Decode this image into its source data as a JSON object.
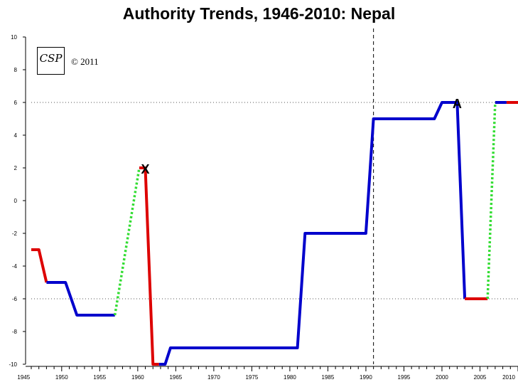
{
  "chart_data": {
    "type": "line",
    "title": "Authority Trends, 1946-2010: Nepal",
    "xlabel": "",
    "ylabel": "",
    "xlim": [
      1946,
      2010
    ],
    "ylim": [
      -10,
      10
    ],
    "x_ticks": [
      "1945",
      "1950",
      "1955",
      "1960",
      "1965",
      "1970",
      "1975",
      "1980",
      "1985",
      "1990",
      "1995",
      "2000",
      "2005",
      "2010"
    ],
    "y_ticks": [
      "10",
      "8",
      "6",
      "4",
      "2",
      "0",
      "-2",
      "-4",
      "-6",
      "-8",
      "-10"
    ],
    "reference_lines": {
      "horizontal": [
        6,
        -6
      ],
      "vertical": [
        1991
      ]
    },
    "segments": [
      {
        "kind": "red",
        "points": [
          [
            1946,
            -3
          ],
          [
            1947,
            -3
          ],
          [
            1948,
            -5
          ]
        ]
      },
      {
        "kind": "blue",
        "points": [
          [
            1948,
            -5
          ],
          [
            1950.5,
            -5
          ],
          [
            1952,
            -7
          ],
          [
            1957,
            -7
          ]
        ]
      },
      {
        "kind": "green",
        "points": [
          [
            1957,
            -7
          ],
          [
            1960.2,
            2
          ]
        ]
      },
      {
        "kind": "red",
        "points": [
          [
            1960.2,
            2
          ],
          [
            1961,
            2
          ],
          [
            1962,
            -10
          ],
          [
            1962.8,
            -10
          ]
        ]
      },
      {
        "kind": "blue",
        "points": [
          [
            1962.8,
            -10
          ],
          [
            1963.6,
            -10
          ],
          [
            1964.3,
            -9
          ],
          [
            1981,
            -9
          ],
          [
            1982,
            -2
          ],
          [
            1990,
            -2
          ],
          [
            1991,
            5
          ],
          [
            1999,
            5
          ],
          [
            2000,
            6
          ],
          [
            2002,
            6
          ],
          [
            2003,
            -6
          ]
        ]
      },
      {
        "kind": "red",
        "points": [
          [
            2003,
            -6
          ],
          [
            2006,
            -6
          ]
        ]
      },
      {
        "kind": "green",
        "points": [
          [
            2006,
            -6
          ],
          [
            2007,
            6
          ]
        ]
      },
      {
        "kind": "blue",
        "points": [
          [
            2007,
            6
          ],
          [
            2008.5,
            6
          ]
        ]
      },
      {
        "kind": "red",
        "points": [
          [
            2008.5,
            6
          ],
          [
            2010,
            6
          ]
        ]
      }
    ],
    "annotations": [
      {
        "text": "X",
        "x": 1961,
        "y": 2
      },
      {
        "text": "A",
        "x": 2002,
        "y": 6
      }
    ],
    "colors": {
      "blue": "#0000cc",
      "red": "#dd0000",
      "green": "#33dd33"
    },
    "grid": false,
    "legend": "none"
  },
  "logo": {
    "text": "CSP",
    "copyright": "© 2011"
  }
}
